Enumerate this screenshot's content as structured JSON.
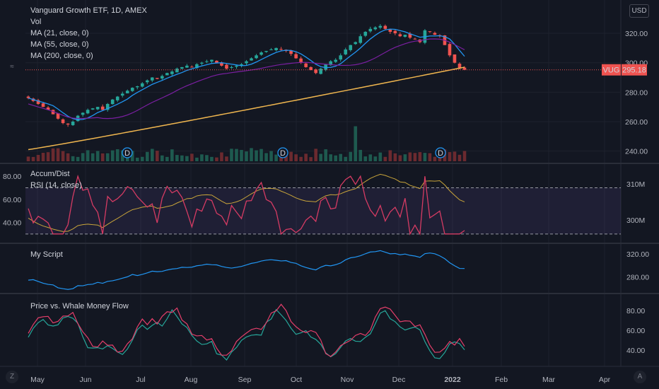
{
  "header": {
    "title": "Vanguard Growth ETF, 1D, AMEX",
    "indicators": [
      "Vol",
      "MA (21, close, 0)",
      "MA (55, close, 0)",
      "MA (200, close, 0)"
    ],
    "currency_button": "USD"
  },
  "colors": {
    "background": "#131722",
    "grid": "#1e222d",
    "up": "#26a69a",
    "down": "#ef5350",
    "ma21": "#2196f3",
    "ma55": "#7b1fa2",
    "ma200": "#f0b64f",
    "rsi": "#d53b63",
    "accum": "#c8a43a",
    "myscript": "#2196f3",
    "whale_green": "#26a69a",
    "whale_red": "#e53f6b",
    "price_tag": "#ef5350"
  },
  "price_tag": {
    "symbol": "VUG",
    "value": "295.18"
  },
  "corner_icons": {
    "bottom_left": "settings-icon",
    "bottom_right": "auto-scale-icon",
    "top_left": "scroll-icon"
  },
  "bottom_left_label": "Z",
  "bottom_right_label": "A",
  "top_left_label": "≈",
  "chart_data": [
    {
      "type": "candlestick",
      "title": "Vanguard Growth ETF, 1D, AMEX",
      "x_labels": [
        "May",
        "Jun",
        "Jul",
        "Aug",
        "Sep",
        "Oct",
        "Nov",
        "Dec",
        "2022",
        "Feb",
        "Mar",
        "Apr"
      ],
      "y_ticks": [
        "320.00",
        "300.00",
        "280.00",
        "260.00",
        "240.00"
      ],
      "ylim": [
        235,
        333
      ],
      "close_approx": [
        276,
        274,
        272,
        270,
        268,
        265,
        262,
        259,
        258,
        260,
        264,
        266,
        268,
        269,
        270,
        268,
        272,
        275,
        277,
        279,
        281,
        283,
        284,
        286,
        288,
        290,
        289,
        291,
        293,
        294,
        296,
        297,
        298,
        297,
        299,
        300,
        301,
        302,
        300,
        298,
        296,
        297,
        298,
        299,
        301,
        303,
        305,
        307,
        308,
        309,
        310,
        309,
        308,
        306,
        303,
        300,
        297,
        295,
        293,
        296,
        299,
        301,
        302,
        305,
        309,
        312,
        314,
        318,
        321,
        323,
        324,
        325,
        323,
        321,
        320,
        318,
        319,
        317,
        316,
        314,
        322,
        321,
        319,
        318,
        312,
        305,
        300,
        296,
        295.18
      ],
      "events": [
        "D",
        "D",
        "D"
      ],
      "series": [
        {
          "name": "MA (21, close, 0)"
        },
        {
          "name": "MA (55, close, 0)"
        },
        {
          "name": "MA (200, close, 0)"
        }
      ]
    },
    {
      "type": "line",
      "title": "Accum/Dist",
      "secondary_title": "RSI (14, close)",
      "y_ticks_left": [
        "80.00",
        "60.00",
        "40.00"
      ],
      "y_ticks_right": [
        "310M",
        "300M"
      ],
      "rsi_bands": [
        70,
        30
      ],
      "rsi_ylim": [
        25,
        85
      ]
    },
    {
      "type": "line",
      "title": "My Script",
      "y_ticks": [
        "320.00",
        "280.00"
      ],
      "ylim": [
        255,
        335
      ]
    },
    {
      "type": "line",
      "title": "Price vs. Whale Money Flow",
      "y_ticks": [
        "80.00",
        "60.00",
        "40.00"
      ],
      "ylim": [
        25,
        95
      ]
    }
  ]
}
